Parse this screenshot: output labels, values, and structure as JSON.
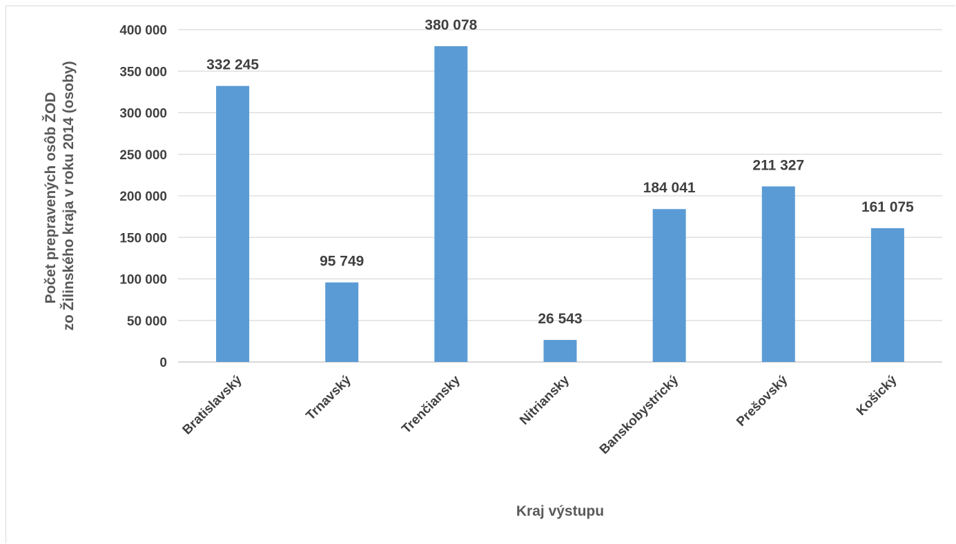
{
  "chart_data": {
    "type": "bar",
    "categories": [
      "Bratislavský",
      "Trnavský",
      "Trenčiansky",
      "Nitriansky",
      "Banskobystrický",
      "Prešovský",
      "Košický"
    ],
    "values": [
      332245,
      95749,
      380078,
      26543,
      184041,
      211327,
      161075
    ],
    "data_labels": [
      "332 245",
      "95 749",
      "380 078",
      "26 543",
      "184 041",
      "211 327",
      "161 075"
    ],
    "ytick_labels": [
      "0",
      "50 000",
      "100 000",
      "150 000",
      "200 000",
      "250 000",
      "300 000",
      "350 000",
      "400 000"
    ],
    "ylim": [
      0,
      400000
    ],
    "ylabel_line1": "Počet prepravených osôb ŽOD",
    "ylabel_line2": "zo Žilinského kraja v roku 2014 (osoby)",
    "xlabel": "Kraj výstupu",
    "grid": true,
    "legend": "none",
    "bar_color": "#5b9bd5",
    "grid_color": "#d9d9d9"
  }
}
